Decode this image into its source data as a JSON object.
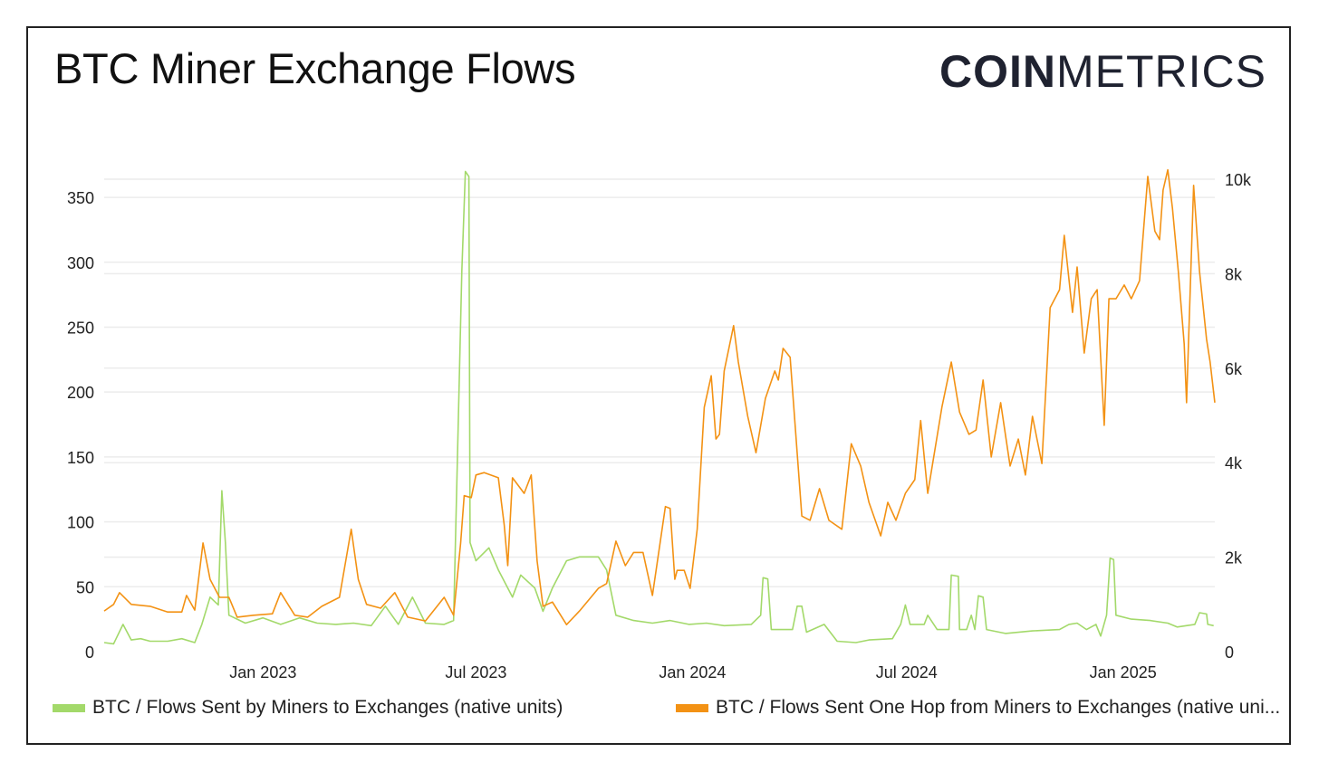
{
  "title": "BTC Miner Exchange Flows",
  "logo": {
    "bold": "COIN",
    "light": "METRICS"
  },
  "chart_data": {
    "type": "line",
    "title": "BTC Miner Exchange Flows",
    "grid": true,
    "legend_position": "bottom",
    "x_ticks": [
      {
        "date": "2023-01-01",
        "label": "Jan 2023"
      },
      {
        "date": "2023-07-01",
        "label": "Jul 2023"
      },
      {
        "date": "2024-01-01",
        "label": "Jan 2024"
      },
      {
        "date": "2024-07-01",
        "label": "Jul 2024"
      },
      {
        "date": "2025-01-01",
        "label": "Jan 2025"
      }
    ],
    "xlim": [
      "2022-08-19",
      "2025-03-20"
    ],
    "y_left": {
      "ylim": [
        0,
        364
      ],
      "ticks": [
        0,
        50,
        100,
        150,
        200,
        250,
        300,
        350
      ],
      "tick_labels": [
        "0",
        "50",
        "100",
        "150",
        "200",
        "250",
        "300",
        "350"
      ]
    },
    "y_right": {
      "ylim": [
        0,
        10000
      ],
      "ticks": [
        0,
        2000,
        4000,
        6000,
        8000,
        10000
      ],
      "tick_labels": [
        "0",
        "2k",
        "4k",
        "6k",
        "8k",
        "10k"
      ]
    },
    "series": [
      {
        "name": "BTC / Flows Sent by Miners to Exchanges (native units)",
        "legend_label": "BTC / Flows Sent by Miners to Exchanges (native units)",
        "axis": "left",
        "color": "#a3d96a",
        "points": [
          [
            "2022-08-19",
            7
          ],
          [
            "2022-08-27",
            6
          ],
          [
            "2022-09-04",
            21
          ],
          [
            "2022-09-11",
            9
          ],
          [
            "2022-09-19",
            10
          ],
          [
            "2022-09-27",
            8
          ],
          [
            "2022-10-12",
            8
          ],
          [
            "2022-10-24",
            10
          ],
          [
            "2022-11-04",
            7
          ],
          [
            "2022-11-10",
            21
          ],
          [
            "2022-11-17",
            42
          ],
          [
            "2022-11-24",
            36
          ],
          [
            "2022-11-27",
            124
          ],
          [
            "2022-11-30",
            84
          ],
          [
            "2022-12-03",
            28
          ],
          [
            "2022-12-17",
            22
          ],
          [
            "2023-01-01",
            26
          ],
          [
            "2023-01-16",
            21
          ],
          [
            "2023-02-01",
            26
          ],
          [
            "2023-02-16",
            22
          ],
          [
            "2023-03-04",
            21
          ],
          [
            "2023-03-19",
            22
          ],
          [
            "2023-04-03",
            20
          ],
          [
            "2023-04-15",
            35
          ],
          [
            "2023-04-26",
            21
          ],
          [
            "2023-05-08",
            42
          ],
          [
            "2023-05-19",
            22
          ],
          [
            "2023-06-04",
            21
          ],
          [
            "2023-06-12",
            24
          ],
          [
            "2023-06-19",
            293
          ],
          [
            "2023-06-22",
            370
          ],
          [
            "2023-06-25",
            366
          ],
          [
            "2023-06-26",
            84
          ],
          [
            "2023-07-01",
            70
          ],
          [
            "2023-07-12",
            80
          ],
          [
            "2023-07-20",
            63
          ],
          [
            "2023-08-01",
            42
          ],
          [
            "2023-08-08",
            59
          ],
          [
            "2023-08-20",
            49
          ],
          [
            "2023-08-27",
            31
          ],
          [
            "2023-09-04",
            49
          ],
          [
            "2023-09-16",
            70
          ],
          [
            "2023-09-27",
            73
          ],
          [
            "2023-10-13",
            73
          ],
          [
            "2023-10-20",
            63
          ],
          [
            "2023-10-28",
            28
          ],
          [
            "2023-11-12",
            24
          ],
          [
            "2023-11-28",
            22
          ],
          [
            "2023-12-13",
            24
          ],
          [
            "2023-12-29",
            21
          ],
          [
            "2024-01-13",
            22
          ],
          [
            "2024-01-28",
            20
          ],
          [
            "2024-02-20",
            21
          ],
          [
            "2024-02-28",
            28
          ],
          [
            "2024-03-01",
            57
          ],
          [
            "2024-03-05",
            56
          ],
          [
            "2024-03-08",
            17
          ],
          [
            "2024-03-26",
            17
          ],
          [
            "2024-03-30",
            35
          ],
          [
            "2024-04-03",
            35
          ],
          [
            "2024-04-07",
            15
          ],
          [
            "2024-04-22",
            21
          ],
          [
            "2024-05-03",
            8
          ],
          [
            "2024-05-19",
            7
          ],
          [
            "2024-05-30",
            9
          ],
          [
            "2024-06-19",
            10
          ],
          [
            "2024-06-26",
            21
          ],
          [
            "2024-06-30",
            36
          ],
          [
            "2024-07-04",
            21
          ],
          [
            "2024-07-16",
            21
          ],
          [
            "2024-07-19",
            28
          ],
          [
            "2024-07-27",
            17
          ],
          [
            "2024-08-06",
            17
          ],
          [
            "2024-08-08",
            59
          ],
          [
            "2024-08-14",
            58
          ],
          [
            "2024-08-15",
            17
          ],
          [
            "2024-08-21",
            17
          ],
          [
            "2024-08-25",
            28
          ],
          [
            "2024-08-28",
            17
          ],
          [
            "2024-08-31",
            43
          ],
          [
            "2024-09-04",
            42
          ],
          [
            "2024-09-07",
            17
          ],
          [
            "2024-09-23",
            14
          ],
          [
            "2024-10-16",
            16
          ],
          [
            "2024-11-08",
            17
          ],
          [
            "2024-11-16",
            21
          ],
          [
            "2024-11-23",
            22
          ],
          [
            "2024-12-01",
            17
          ],
          [
            "2024-12-09",
            21
          ],
          [
            "2024-12-13",
            12
          ],
          [
            "2024-12-18",
            28
          ],
          [
            "2024-12-21",
            72
          ],
          [
            "2024-12-24",
            71
          ],
          [
            "2024-12-26",
            28
          ],
          [
            "2025-01-08",
            25
          ],
          [
            "2025-01-24",
            24
          ],
          [
            "2025-02-08",
            22
          ],
          [
            "2025-02-16",
            19
          ],
          [
            "2025-03-03",
            21
          ],
          [
            "2025-03-07",
            30
          ],
          [
            "2025-03-13",
            29
          ],
          [
            "2025-03-14",
            21
          ],
          [
            "2025-03-19",
            20
          ]
        ]
      },
      {
        "name": "BTC / Flows Sent One Hop from Miners to Exchanges (native units)",
        "legend_label": "BTC / Flows Sent One Hop from Miners to Exchanges (native uni...",
        "axis": "right",
        "color": "#f39214",
        "points": [
          [
            "2022-08-19",
            860
          ],
          [
            "2022-08-27",
            1000
          ],
          [
            "2022-09-01",
            1250
          ],
          [
            "2022-09-11",
            1000
          ],
          [
            "2022-09-27",
            960
          ],
          [
            "2022-10-12",
            840
          ],
          [
            "2022-10-24",
            840
          ],
          [
            "2022-10-28",
            1190
          ],
          [
            "2022-11-04",
            880
          ],
          [
            "2022-11-11",
            2300
          ],
          [
            "2022-11-17",
            1530
          ],
          [
            "2022-11-25",
            1150
          ],
          [
            "2022-12-03",
            1150
          ],
          [
            "2022-12-10",
            730
          ],
          [
            "2022-12-24",
            770
          ],
          [
            "2023-01-09",
            800
          ],
          [
            "2023-01-16",
            1250
          ],
          [
            "2023-01-28",
            770
          ],
          [
            "2023-02-08",
            730
          ],
          [
            "2023-02-20",
            960
          ],
          [
            "2023-03-07",
            1150
          ],
          [
            "2023-03-17",
            2590
          ],
          [
            "2023-03-23",
            1530
          ],
          [
            "2023-03-30",
            1000
          ],
          [
            "2023-04-11",
            920
          ],
          [
            "2023-04-23",
            1250
          ],
          [
            "2023-05-04",
            730
          ],
          [
            "2023-05-19",
            650
          ],
          [
            "2023-06-04",
            1150
          ],
          [
            "2023-06-12",
            770
          ],
          [
            "2023-06-18",
            2300
          ],
          [
            "2023-06-21",
            3300
          ],
          [
            "2023-06-27",
            3260
          ],
          [
            "2023-07-01",
            3740
          ],
          [
            "2023-07-08",
            3790
          ],
          [
            "2023-07-20",
            3680
          ],
          [
            "2023-07-25",
            2680
          ],
          [
            "2023-07-28",
            1820
          ],
          [
            "2023-08-01",
            3680
          ],
          [
            "2023-08-11",
            3350
          ],
          [
            "2023-08-17",
            3740
          ],
          [
            "2023-08-22",
            1920
          ],
          [
            "2023-08-27",
            960
          ],
          [
            "2023-09-04",
            1050
          ],
          [
            "2023-09-16",
            570
          ],
          [
            "2023-09-27",
            860
          ],
          [
            "2023-10-13",
            1340
          ],
          [
            "2023-10-20",
            1440
          ],
          [
            "2023-10-28",
            2340
          ],
          [
            "2023-11-05",
            1820
          ],
          [
            "2023-11-12",
            2100
          ],
          [
            "2023-11-20",
            2100
          ],
          [
            "2023-11-28",
            1190
          ],
          [
            "2023-12-09",
            3070
          ],
          [
            "2023-12-13",
            3030
          ],
          [
            "2023-12-17",
            1530
          ],
          [
            "2023-12-19",
            1720
          ],
          [
            "2023-12-25",
            1720
          ],
          [
            "2023-12-30",
            1340
          ],
          [
            "2024-01-05",
            2590
          ],
          [
            "2024-01-11",
            5170
          ],
          [
            "2024-01-17",
            5840
          ],
          [
            "2024-01-21",
            4500
          ],
          [
            "2024-01-24",
            4600
          ],
          [
            "2024-01-28",
            5940
          ],
          [
            "2024-02-05",
            6900
          ],
          [
            "2024-02-09",
            6130
          ],
          [
            "2024-02-17",
            4980
          ],
          [
            "2024-02-24",
            4210
          ],
          [
            "2024-03-03",
            5360
          ],
          [
            "2024-03-11",
            5940
          ],
          [
            "2024-03-14",
            5750
          ],
          [
            "2024-03-18",
            6420
          ],
          [
            "2024-03-24",
            6230
          ],
          [
            "2024-04-03",
            2870
          ],
          [
            "2024-04-10",
            2780
          ],
          [
            "2024-04-18",
            3450
          ],
          [
            "2024-04-26",
            2780
          ],
          [
            "2024-05-07",
            2590
          ],
          [
            "2024-05-15",
            4400
          ],
          [
            "2024-05-23",
            3930
          ],
          [
            "2024-05-30",
            3160
          ],
          [
            "2024-06-09",
            2450
          ],
          [
            "2024-06-15",
            3160
          ],
          [
            "2024-06-22",
            2780
          ],
          [
            "2024-06-30",
            3350
          ],
          [
            "2024-07-08",
            3640
          ],
          [
            "2024-07-13",
            4890
          ],
          [
            "2024-07-19",
            3350
          ],
          [
            "2024-07-31",
            5170
          ],
          [
            "2024-08-08",
            6130
          ],
          [
            "2024-08-15",
            5070
          ],
          [
            "2024-08-23",
            4600
          ],
          [
            "2024-08-29",
            4690
          ],
          [
            "2024-09-04",
            5750
          ],
          [
            "2024-09-11",
            4120
          ],
          [
            "2024-09-19",
            5270
          ],
          [
            "2024-09-27",
            3930
          ],
          [
            "2024-10-04",
            4500
          ],
          [
            "2024-10-10",
            3740
          ],
          [
            "2024-10-16",
            4980
          ],
          [
            "2024-10-24",
            3980
          ],
          [
            "2024-10-31",
            7280
          ],
          [
            "2024-11-08",
            7660
          ],
          [
            "2024-11-12",
            8810
          ],
          [
            "2024-11-19",
            7180
          ],
          [
            "2024-11-23",
            8140
          ],
          [
            "2024-11-29",
            6320
          ],
          [
            "2024-12-05",
            7470
          ],
          [
            "2024-12-10",
            7660
          ],
          [
            "2024-12-16",
            4790
          ],
          [
            "2024-12-20",
            7470
          ],
          [
            "2024-12-26",
            7470
          ],
          [
            "2025-01-02",
            7760
          ],
          [
            "2025-01-08",
            7470
          ],
          [
            "2025-01-15",
            7850
          ],
          [
            "2025-01-22",
            10060
          ],
          [
            "2025-01-28",
            8900
          ],
          [
            "2025-02-01",
            8720
          ],
          [
            "2025-02-04",
            9770
          ],
          [
            "2025-02-08",
            10200
          ],
          [
            "2025-02-12",
            9390
          ],
          [
            "2025-02-17",
            8050
          ],
          [
            "2025-02-22",
            6510
          ],
          [
            "2025-02-24",
            5270
          ],
          [
            "2025-03-02",
            9870
          ],
          [
            "2025-03-07",
            8050
          ],
          [
            "2025-03-13",
            6610
          ],
          [
            "2025-03-16",
            6130
          ],
          [
            "2025-03-20",
            5270
          ]
        ]
      }
    ]
  }
}
